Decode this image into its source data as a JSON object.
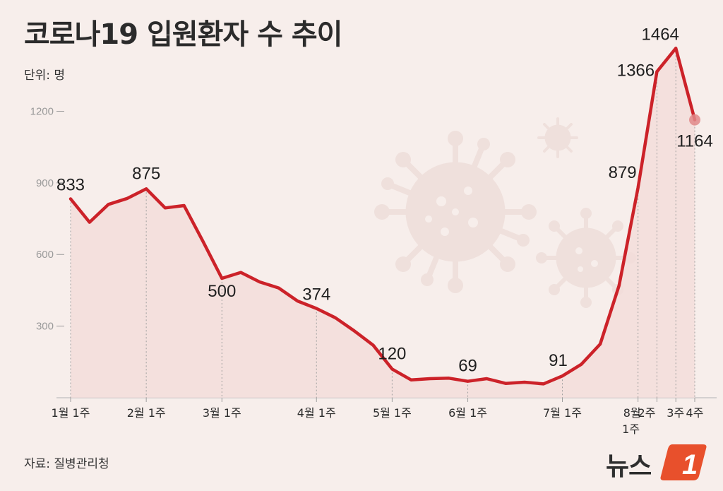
{
  "title": "코로나19 입원환자 수 추이",
  "unit_label": "단위: 명",
  "source_label": "자료: 질병관리청",
  "logo": {
    "text": "뉴스",
    "mark": "1"
  },
  "colors": {
    "line": "#cc2229",
    "fill": "#f3dcd9",
    "background": "#f7eeeb",
    "decor": "#eeddd9",
    "logo_badge": "#e8502c"
  },
  "icons": [
    "virus-icon"
  ],
  "chart_data": {
    "type": "line",
    "title": "코로나19 입원환자 수 추이",
    "ylabel": "단위: 명",
    "ylim": [
      0,
      1450
    ],
    "yticks": [
      300,
      600,
      900,
      1200
    ],
    "grid": false,
    "series": [
      {
        "name": "",
        "x": [
          0,
          1,
          2,
          3,
          4,
          5,
          6,
          7,
          8,
          9,
          10,
          11,
          12,
          13,
          14,
          15,
          16,
          17,
          18,
          19,
          20,
          21,
          22,
          23,
          24,
          25,
          26,
          27,
          28,
          29,
          30,
          31,
          32,
          33
        ],
        "values": [
          833,
          735,
          810,
          835,
          875,
          795,
          805,
          655,
          500,
          525,
          485,
          460,
          405,
          374,
          335,
          280,
          220,
          120,
          75,
          80,
          82,
          69,
          80,
          60,
          65,
          58,
          91,
          140,
          225,
          470,
          879,
          1366,
          1464,
          1164
        ],
        "point_labels": {
          "0": "833",
          "4": "875",
          "8": "500",
          "13": "374",
          "17": "120",
          "21": "69",
          "26": "91",
          "30": "879",
          "31": "1366",
          "32": "1464",
          "33": "1164"
        }
      }
    ],
    "x_tick_labels": [
      {
        "x": 0,
        "label": "1월 1주"
      },
      {
        "x": 4,
        "label": "2월 1주"
      },
      {
        "x": 8,
        "label": "3월 1주"
      },
      {
        "x": 13,
        "label": "4월 1주"
      },
      {
        "x": 17,
        "label": "5월 1주"
      },
      {
        "x": 21,
        "label": "6월 1주"
      },
      {
        "x": 26,
        "label": "7월 1주"
      },
      {
        "x": 30,
        "label": "8월 1주"
      },
      {
        "x": 31,
        "label": "2주"
      },
      {
        "x": 32,
        "label": "3주"
      },
      {
        "x": 33,
        "label": "4주"
      }
    ]
  }
}
